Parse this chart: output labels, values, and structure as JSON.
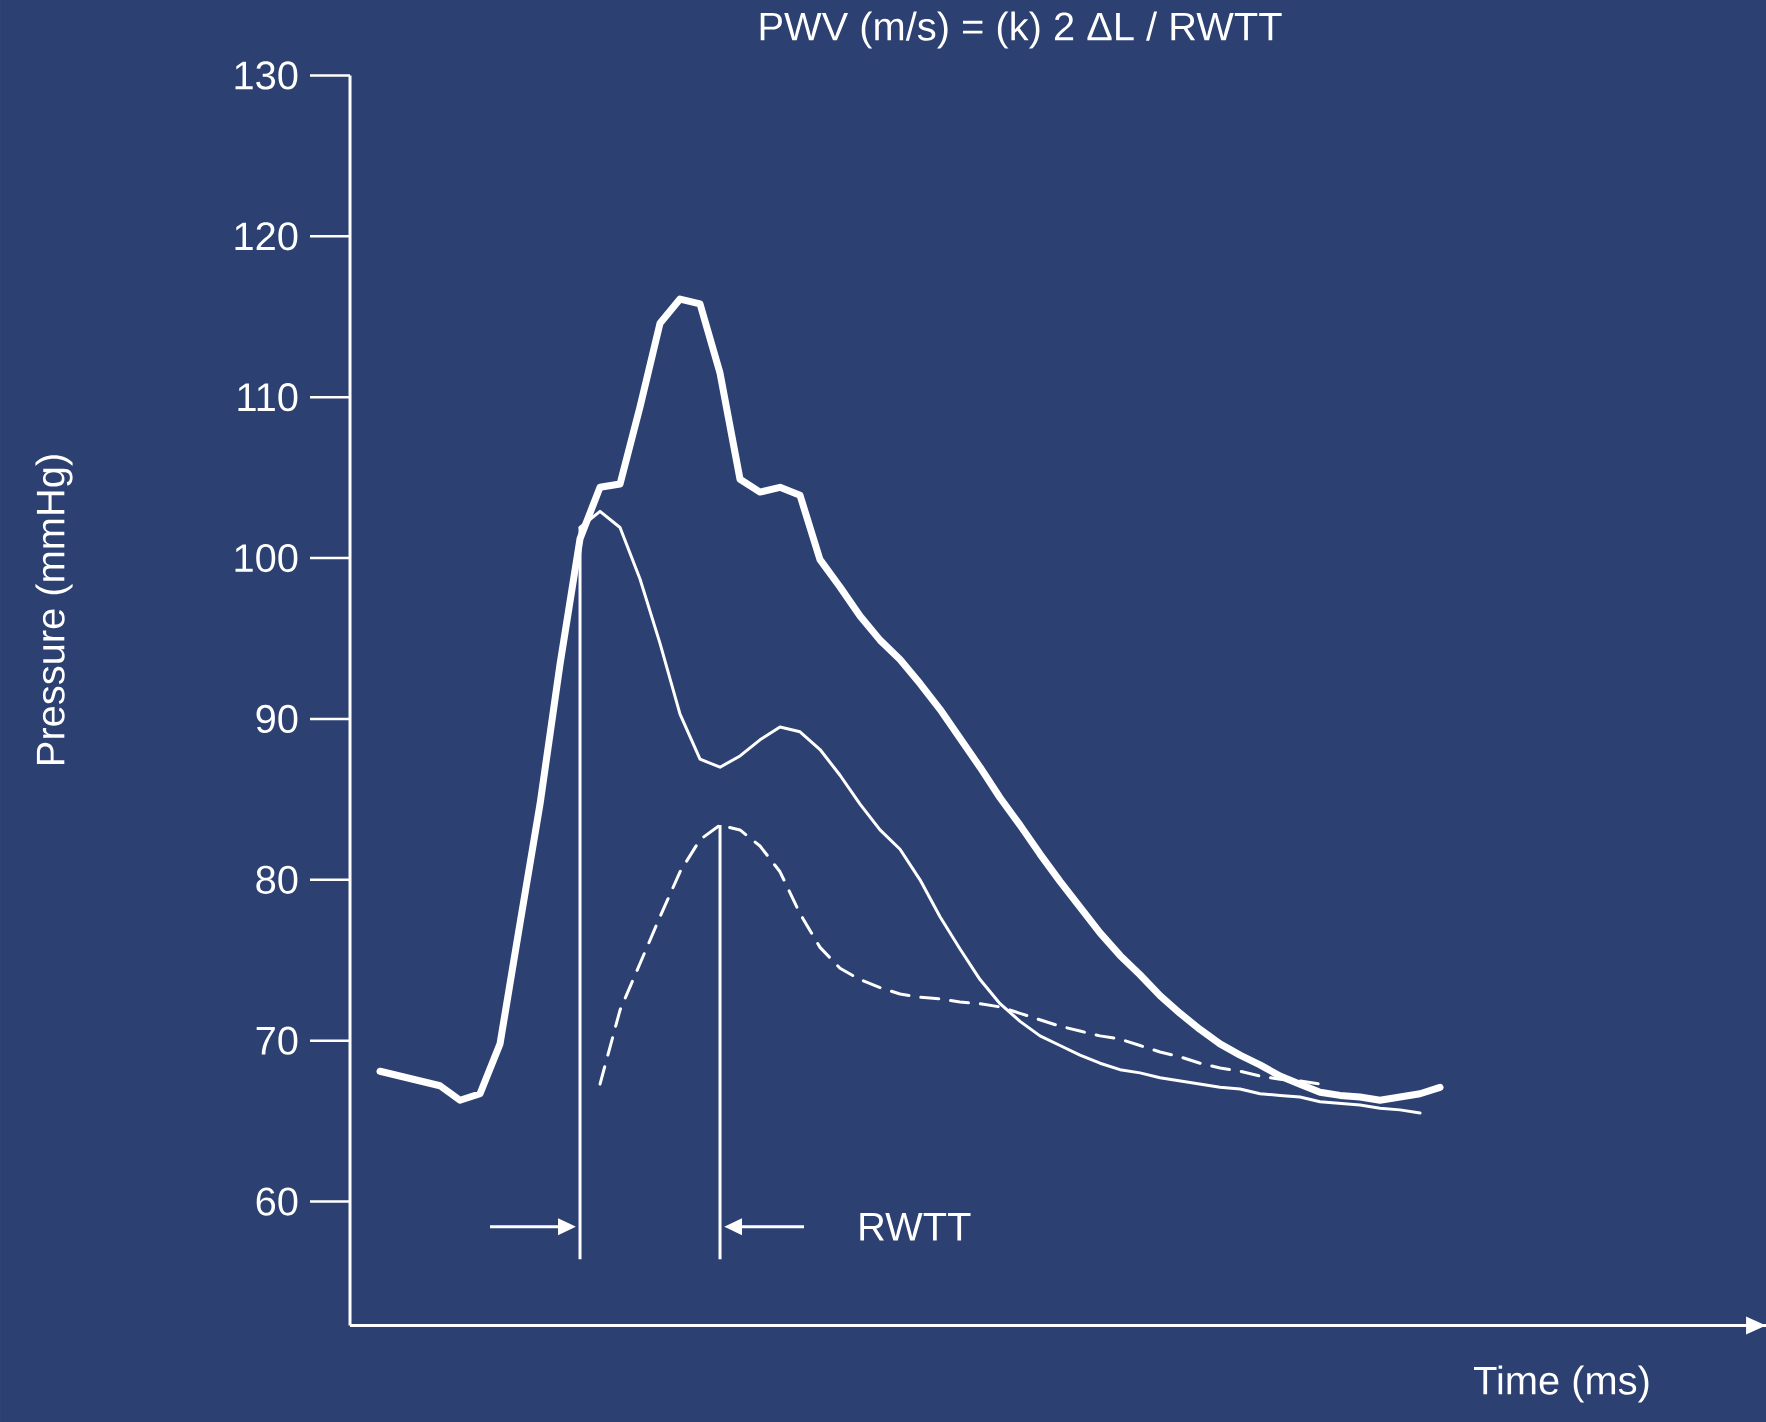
{
  "chart_data": {
    "type": "line",
    "title": "PWV (m/s) = (k) 2 ΔL / RWTT",
    "xlabel": "Time (ms)",
    "ylabel": "Pressure (mmHg)",
    "categories": [
      null,
      null,
      null,
      null,
      null,
      null,
      null,
      null,
      null,
      null,
      null,
      null,
      null,
      null,
      null,
      null,
      null,
      null,
      null,
      null,
      null,
      null,
      null,
      null,
      null,
      null,
      null,
      null,
      null,
      null,
      null,
      null,
      null,
      null,
      null,
      null,
      null,
      null,
      null,
      null,
      null,
      null,
      null,
      null,
      null,
      null,
      null,
      null,
      null,
      null,
      null,
      null,
      null,
      null
    ],
    "series": [
      {
        "color": "#ffffff",
        "line_style": "solid",
        "values": [
          68.1,
          67.8,
          67.5,
          67.2,
          66.3,
          66.7,
          69.8,
          77.3,
          84.7,
          93.4,
          101.2,
          104.4,
          104.6,
          109.4,
          114.6,
          116.1,
          115.8,
          111.5,
          104.9,
          104.1,
          104.4,
          103.9,
          99.9,
          98.2,
          96.4,
          94.9,
          93.7,
          92.2,
          90.6,
          88.8,
          87.0,
          85.1,
          83.4,
          81.6,
          79.9,
          78.3,
          76.7,
          75.3,
          74.1,
          72.8,
          71.7,
          70.7,
          69.8,
          69.1,
          68.5,
          67.8,
          67.3,
          66.8,
          66.6,
          66.5,
          66.3,
          66.5,
          66.7,
          67.1
        ]
      },
      {
        "color": "#ffffff",
        "line_style": "solid",
        "values": [
          null,
          null,
          null,
          null,
          null,
          null,
          null,
          null,
          null,
          null,
          101.9,
          102.9,
          101.9,
          98.7,
          94.7,
          90.3,
          87.5,
          87.0,
          87.7,
          88.7,
          89.5,
          89.2,
          88.1,
          86.5,
          84.7,
          83.1,
          81.9,
          80.0,
          77.7,
          75.7,
          73.8,
          72.3,
          71.2,
          70.3,
          69.7,
          69.1,
          68.6,
          68.2,
          68.0,
          67.7,
          67.5,
          67.3,
          67.1,
          67.0,
          66.7,
          66.6,
          66.5,
          66.2,
          66.1,
          66.0,
          65.8,
          65.7,
          65.5,
          null
        ]
      },
      {
        "color": "#ffffff",
        "line_style": "dashed",
        "values": [
          null,
          null,
          null,
          null,
          null,
          null,
          null,
          null,
          null,
          null,
          null,
          67.3,
          71.9,
          74.8,
          77.7,
          80.5,
          82.5,
          83.4,
          83.1,
          82.1,
          80.5,
          77.9,
          75.8,
          74.5,
          73.8,
          73.3,
          72.9,
          72.7,
          72.6,
          72.4,
          72.3,
          72.1,
          71.7,
          71.3,
          70.9,
          70.6,
          70.3,
          70.1,
          69.7,
          69.3,
          69.0,
          68.6,
          68.3,
          68.1,
          67.8,
          67.6,
          67.5,
          67.3,
          null,
          null,
          null,
          null,
          null,
          null
        ]
      }
    ],
    "ylim": [
      52.3,
      130
    ],
    "yticks": [
      60,
      70,
      80,
      90,
      100,
      110,
      120,
      130
    ],
    "tick_labels": "y",
    "annotations": [
      "RWTT"
    ]
  }
}
